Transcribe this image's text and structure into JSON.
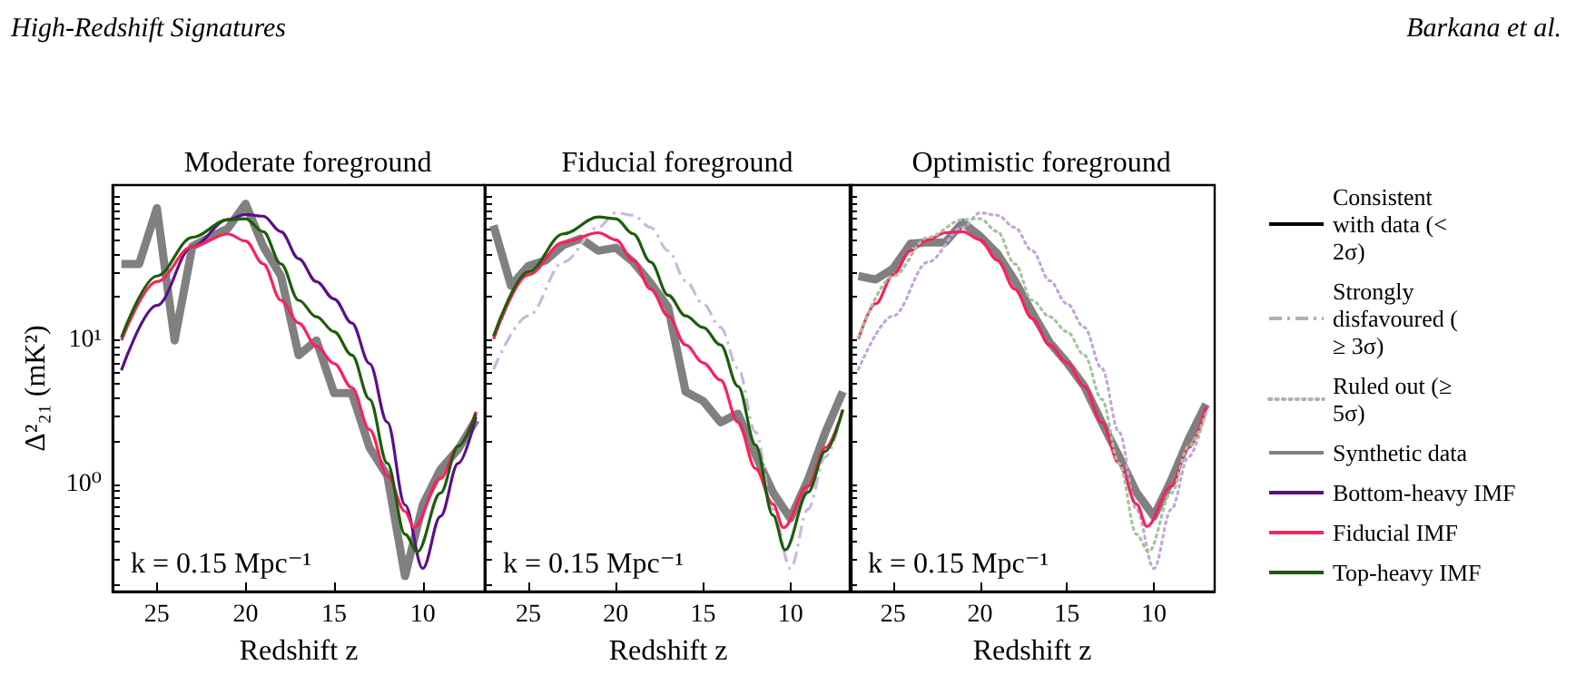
{
  "chart_data": [
    {
      "type": "line",
      "title": "Moderate foreground",
      "xlabel": "Redshift z",
      "ylabel": "Δ²₂₁ (mK²)",
      "log": "y",
      "xlim": [
        27.5,
        6.5
      ],
      "xticks": [
        25,
        20,
        15,
        10
      ],
      "ylim": [
        0.18,
        120
      ],
      "yticks": [
        {
          "value": 0.2,
          "label": null
        },
        {
          "value": 0.3,
          "label": null
        },
        {
          "value": 0.4,
          "label": null
        },
        {
          "value": 0.5,
          "label": null
        },
        {
          "value": 0.6,
          "label": null
        },
        {
          "value": 0.7,
          "label": null
        },
        {
          "value": 0.8,
          "label": null
        },
        {
          "value": 0.9,
          "label": null
        },
        {
          "value": 1,
          "label": "10⁰"
        },
        {
          "value": 2,
          "label": null
        },
        {
          "value": 3,
          "label": null
        },
        {
          "value": 4,
          "label": null
        },
        {
          "value": 5,
          "label": null
        },
        {
          "value": 6,
          "label": null
        },
        {
          "value": 7,
          "label": null
        },
        {
          "value": 8,
          "label": null
        },
        {
          "value": 9,
          "label": null
        },
        {
          "value": 10,
          "label": "10¹"
        },
        {
          "value": 20,
          "label": null
        },
        {
          "value": 30,
          "label": null
        },
        {
          "value": 40,
          "label": null
        },
        {
          "value": 50,
          "label": null
        },
        {
          "value": 60,
          "label": null
        },
        {
          "value": 70,
          "label": null
        },
        {
          "value": 80,
          "label": null
        },
        {
          "value": 90,
          "label": null
        },
        {
          "value": 100,
          "label": null
        }
      ],
      "grid": false,
      "marker": "none",
      "legend": "right",
      "annotations": [
        "k = 0.15 Mpc⁻¹"
      ],
      "series": [
        {
          "name": "Synthetic data",
          "color": "#808080",
          "line_style": "solid",
          "x": [
            27,
            26,
            25,
            24,
            23,
            22,
            21,
            20,
            19,
            18,
            17,
            16,
            15,
            14,
            13,
            12,
            11,
            10,
            9,
            8,
            7
          ],
          "values": [
            34,
            34,
            83,
            10,
            45,
            52,
            60,
            89,
            45,
            28,
            7.9,
            10,
            4.3,
            4.3,
            1.8,
            1.15,
            0.23,
            0.72,
            1.27,
            1.75,
            2.8
          ]
        },
        {
          "name": "Bottom-heavy IMF",
          "color": "#5b0f8b",
          "line_style": "solid",
          "x": [
            27,
            25,
            23,
            21,
            20,
            19,
            18,
            17,
            16,
            15,
            14,
            13,
            12,
            11,
            10,
            9,
            8,
            7
          ],
          "values": [
            6.2,
            17.5,
            45,
            69,
            75,
            73,
            57,
            37,
            25.6,
            19.4,
            13.2,
            6.9,
            2.7,
            0.72,
            0.26,
            0.6,
            1.4,
            2.95
          ]
        },
        {
          "name": "Fiducial IMF",
          "color": "#ff1f5b",
          "line_style": "solid",
          "x": [
            27,
            25,
            23,
            21,
            20,
            19,
            18,
            17,
            16,
            15,
            14,
            13,
            12,
            11,
            10.5,
            9,
            8,
            7
          ],
          "values": [
            10,
            25.6,
            45,
            55,
            49,
            34,
            19,
            13.2,
            9.1,
            6.9,
            4.7,
            2.4,
            1.15,
            0.65,
            0.5,
            1.1,
            1.84,
            3.2
          ]
        },
        {
          "name": "Top-heavy IMF",
          "color": "#1a5e0a",
          "line_style": "solid",
          "x": [
            27,
            25,
            23,
            21,
            20,
            19,
            18,
            17,
            16,
            15,
            14,
            13,
            12,
            11,
            10.3,
            9,
            8,
            7
          ],
          "values": [
            10.5,
            28,
            52,
            69,
            70,
            57,
            34,
            19,
            14.6,
            11.5,
            7.9,
            3.9,
            1.4,
            0.45,
            0.34,
            0.87,
            1.84,
            3.1
          ]
        },
        {
          "name": "Consistent with data (< 2σ)",
          "color": "#000000",
          "line_style": "solid"
        },
        {
          "name": "Strongly disfavoured (≥ 3σ)",
          "color": "#b0b0b0",
          "line_style": "dashdot"
        },
        {
          "name": "Ruled out (≥ 5σ)",
          "color": "#b0b0b0",
          "line_style": "dotted"
        }
      ]
    },
    {
      "type": "line",
      "title": "Fiducial foreground",
      "xlabel": "Redshift z",
      "log": "y",
      "xlim": [
        27.5,
        6.5
      ],
      "xticks": [
        25,
        20,
        15,
        10
      ],
      "ylim": [
        0.18,
        120
      ],
      "yticks": [
        {
          "value": 0.2,
          "label": null
        },
        {
          "value": 0.3,
          "label": null
        },
        {
          "value": 0.4,
          "label": null
        },
        {
          "value": 0.5,
          "label": null
        },
        {
          "value": 0.6,
          "label": null
        },
        {
          "value": 0.7,
          "label": null
        },
        {
          "value": 0.8,
          "label": null
        },
        {
          "value": 0.9,
          "label": null
        },
        {
          "value": 1,
          "label": null
        },
        {
          "value": 2,
          "label": null
        },
        {
          "value": 3,
          "label": null
        },
        {
          "value": 4,
          "label": null
        },
        {
          "value": 5,
          "label": null
        },
        {
          "value": 6,
          "label": null
        },
        {
          "value": 7,
          "label": null
        },
        {
          "value": 8,
          "label": null
        },
        {
          "value": 9,
          "label": null
        },
        {
          "value": 10,
          "label": null
        },
        {
          "value": 20,
          "label": null
        },
        {
          "value": 30,
          "label": null
        },
        {
          "value": 40,
          "label": null
        },
        {
          "value": 50,
          "label": null
        },
        {
          "value": 60,
          "label": null
        },
        {
          "value": 70,
          "label": null
        },
        {
          "value": 80,
          "label": null
        },
        {
          "value": 90,
          "label": null
        },
        {
          "value": 100,
          "label": null
        }
      ],
      "tick_labels": "x",
      "grid": false,
      "marker": "none",
      "annotations": [
        "k = 0.15 Mpc⁻¹"
      ],
      "series": [
        {
          "color": "#808080",
          "line_style": "solid",
          "x": [
            27,
            26,
            25,
            24,
            23,
            22,
            21,
            20,
            19,
            18,
            17,
            16,
            15,
            14,
            13,
            12,
            11,
            10,
            9,
            8,
            7
          ],
          "values": [
            63,
            24,
            33,
            36,
            46,
            51,
            42,
            44,
            35,
            25,
            17,
            4.4,
            3.8,
            2.7,
            3.1,
            1.6,
            0.88,
            0.58,
            1.07,
            2.3,
            4.4
          ]
        },
        {
          "color": "#c9b8dc",
          "line_style": "dashdot",
          "x": [
            27,
            25,
            23,
            21,
            20,
            19,
            18,
            17,
            16,
            15,
            14,
            13,
            12,
            11,
            10,
            9,
            8,
            7
          ],
          "values": [
            6.3,
            14.8,
            35,
            61,
            77,
            74,
            61,
            42,
            26,
            18,
            12.3,
            6.4,
            2.3,
            0.67,
            0.26,
            0.67,
            1.55,
            3.3
          ]
        },
        {
          "color": "#ff1f5b",
          "line_style": "solid",
          "x": [
            27,
            25,
            23,
            21,
            20,
            19,
            18,
            17,
            16,
            15,
            14,
            13,
            12,
            11,
            10.4,
            9,
            8,
            7
          ],
          "values": [
            10.2,
            28.6,
            48,
            56,
            50,
            36,
            22.7,
            14.8,
            9.3,
            7,
            5.3,
            2.7,
            1.29,
            0.73,
            0.5,
            0.97,
            1.8,
            3.3
          ]
        },
        {
          "color": "#1a5e0a",
          "line_style": "solid",
          "x": [
            27,
            25,
            23,
            21,
            20,
            19,
            18,
            17,
            16,
            15,
            14,
            13,
            12,
            11,
            10.3,
            9,
            8,
            7
          ],
          "values": [
            10.7,
            30,
            55,
            72,
            70,
            55,
            35,
            20.6,
            14.8,
            12.3,
            9.3,
            4.8,
            1.88,
            0.61,
            0.35,
            0.88,
            1.7,
            3.3
          ]
        }
      ]
    },
    {
      "type": "line",
      "title": "Optimistic foreground",
      "xlabel": "Redshift z",
      "log": "y",
      "xlim": [
        27.5,
        6.5
      ],
      "xticks": [
        25,
        20,
        15,
        10
      ],
      "ylim": [
        0.18,
        120
      ],
      "yticks": [
        {
          "value": 0.2,
          "label": null
        },
        {
          "value": 0.3,
          "label": null
        },
        {
          "value": 0.4,
          "label": null
        },
        {
          "value": 0.5,
          "label": null
        },
        {
          "value": 0.6,
          "label": null
        },
        {
          "value": 0.7,
          "label": null
        },
        {
          "value": 0.8,
          "label": null
        },
        {
          "value": 0.9,
          "label": null
        },
        {
          "value": 1,
          "label": null
        },
        {
          "value": 2,
          "label": null
        },
        {
          "value": 3,
          "label": null
        },
        {
          "value": 4,
          "label": null
        },
        {
          "value": 5,
          "label": null
        },
        {
          "value": 6,
          "label": null
        },
        {
          "value": 7,
          "label": null
        },
        {
          "value": 8,
          "label": null
        },
        {
          "value": 9,
          "label": null
        },
        {
          "value": 10,
          "label": null
        },
        {
          "value": 20,
          "label": null
        },
        {
          "value": 30,
          "label": null
        },
        {
          "value": 40,
          "label": null
        },
        {
          "value": 50,
          "label": null
        },
        {
          "value": 60,
          "label": null
        },
        {
          "value": 70,
          "label": null
        },
        {
          "value": 80,
          "label": null
        },
        {
          "value": 90,
          "label": null
        },
        {
          "value": 100,
          "label": null
        }
      ],
      "tick_labels": "x",
      "grid": false,
      "marker": "none",
      "annotations": [
        "k = 0.15 Mpc⁻¹"
      ],
      "series": [
        {
          "color": "#808080",
          "line_style": "solid",
          "x": [
            27,
            26,
            25,
            24,
            23,
            22,
            21,
            20,
            19,
            18,
            17,
            16,
            15,
            14,
            13,
            12,
            11,
            10,
            9,
            8,
            7
          ],
          "values": [
            28,
            26.5,
            31.6,
            47,
            48,
            48,
            66,
            53,
            40,
            26,
            15.6,
            9.7,
            7,
            4.8,
            2.7,
            1.56,
            0.88,
            0.6,
            1.07,
            2.06,
            3.6
          ]
        },
        {
          "color": "#c3a6d8",
          "line_style": "dotted",
          "x": [
            27,
            25,
            23,
            21,
            20,
            19,
            18,
            17,
            16,
            15,
            14,
            13,
            12,
            11,
            10,
            9,
            8,
            7
          ],
          "values": [
            6.3,
            14.8,
            35,
            61,
            77,
            74,
            61,
            42,
            26,
            18,
            12.3,
            6.4,
            2.3,
            0.67,
            0.26,
            0.67,
            1.55,
            3.3
          ]
        },
        {
          "color": "#ff1f5b",
          "line_style": "solid",
          "x": [
            27,
            26,
            25,
            24,
            23,
            22,
            21,
            20,
            19,
            18,
            17,
            16,
            15,
            14,
            13,
            12,
            11,
            10.4,
            9,
            8,
            7
          ],
          "values": [
            10.2,
            18,
            28.6,
            42,
            50,
            56,
            57,
            50,
            36,
            22.7,
            14.2,
            9.3,
            7,
            4.8,
            2.7,
            1.4,
            0.73,
            0.51,
            0.97,
            1.8,
            3.45
          ]
        },
        {
          "color": "#a3c49b",
          "line_style": "dotted",
          "x": [
            27,
            25,
            23,
            21,
            20,
            19,
            18,
            17,
            16,
            15,
            14,
            13,
            12,
            11,
            10.3,
            9,
            8,
            7
          ],
          "values": [
            10.5,
            28,
            52,
            69,
            70,
            57,
            34,
            19,
            14.6,
            11.5,
            7.9,
            3.9,
            1.4,
            0.45,
            0.34,
            0.87,
            1.84,
            3.1
          ]
        }
      ]
    },
    {
      "type": "other",
      "title": "High-Redshift Signatures",
      "annotations": [
        "Barkana et al."
      ]
    }
  ]
}
